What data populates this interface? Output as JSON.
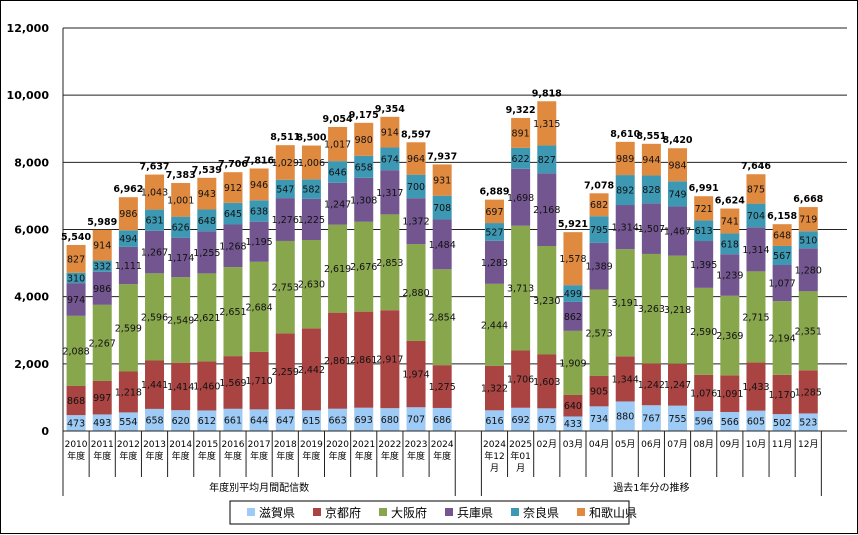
{
  "chart_data": {
    "type": "bar",
    "stacked": true,
    "ylim": [
      0,
      12000
    ],
    "yticks": [
      0,
      2000,
      4000,
      6000,
      8000,
      10000,
      12000
    ],
    "ytick_labels": [
      "0",
      "2,000",
      "4,000",
      "6,000",
      "8,000",
      "10,000",
      "12,000"
    ],
    "grid": true,
    "legend_position": "bottom",
    "groups": [
      {
        "label": "年度別平均月間配信数",
        "categories": [
          "2010\n年度",
          "2011\n年度",
          "2012\n年度",
          "2013\n年度",
          "2014\n年度",
          "2015\n年度",
          "2016\n年度",
          "2017\n年度",
          "2018\n年度",
          "2019\n年度",
          "2020\n年度",
          "2021\n年度",
          "2022\n年度",
          "2023\n年度",
          "2024\n年度"
        ]
      },
      {
        "label": "過去1年分の推移",
        "categories": [
          "2024\n年12\n月",
          "2025\n年01\n月",
          "02月",
          "03月",
          "04月",
          "05月",
          "06月",
          "07月",
          "08月",
          "09月",
          "10月",
          "11月",
          "12月"
        ]
      }
    ],
    "series": [
      {
        "name": "滋賀県",
        "color": "#9DCBF5",
        "values": [
          473,
          493,
          554,
          658,
          620,
          612,
          661,
          644,
          647,
          615,
          663,
          693,
          680,
          707,
          686,
          616,
          692,
          675,
          433,
          734,
          880,
          767,
          755,
          596,
          566,
          605,
          502,
          523
        ]
      },
      {
        "name": "京都府",
        "color": "#A94442",
        "values": [
          868,
          997,
          1218,
          1441,
          1414,
          1460,
          1569,
          1710,
          2259,
          2442,
          2861,
          2861,
          2917,
          1974,
          1275,
          1322,
          1706,
          1603,
          640,
          905,
          1344,
          1242,
          1247,
          1076,
          1091,
          1433,
          1170,
          1285
        ]
      },
      {
        "name": "大阪府",
        "color": "#88A64C",
        "values": [
          2088,
          2267,
          2599,
          2596,
          2549,
          2621,
          2651,
          2684,
          2753,
          2630,
          2619,
          2676,
          2853,
          2880,
          2854,
          2444,
          3713,
          3230,
          1909,
          2573,
          3191,
          3263,
          3218,
          2590,
          2369,
          2715,
          2194,
          2351
        ]
      },
      {
        "name": "兵庫県",
        "color": "#735690",
        "values": [
          974,
          986,
          1111,
          1267,
          1174,
          1255,
          1268,
          1195,
          1276,
          1225,
          1247,
          1308,
          1317,
          1372,
          1484,
          1283,
          1698,
          2168,
          862,
          1389,
          1314,
          1507,
          1467,
          1395,
          1239,
          1314,
          1077,
          1280
        ]
      },
      {
        "name": "奈良県",
        "color": "#3D99B3",
        "values": [
          310,
          332,
          494,
          631,
          626,
          648,
          645,
          638,
          547,
          582,
          646,
          658,
          674,
          700,
          708,
          527,
          622,
          827,
          499,
          795,
          892,
          828,
          749,
          613,
          618,
          704,
          567,
          510
        ]
      },
      {
        "name": "和歌山県",
        "color": "#E08A40",
        "values": [
          827,
          914,
          986,
          1043,
          1001,
          943,
          912,
          946,
          1029,
          1006,
          1017,
          980,
          914,
          964,
          931,
          697,
          891,
          1315,
          1578,
          682,
          989,
          944,
          984,
          721,
          741,
          875,
          648,
          719
        ]
      }
    ],
    "totals": [
      5540,
      5989,
      6962,
      7637,
      7383,
      7539,
      7706,
      7816,
      8511,
      8500,
      9054,
      9175,
      9354,
      8597,
      7937,
      6889,
      9322,
      9818,
      5921,
      7078,
      8610,
      8551,
      8420,
      6991,
      6624,
      7646,
      6158,
      6668
    ]
  }
}
